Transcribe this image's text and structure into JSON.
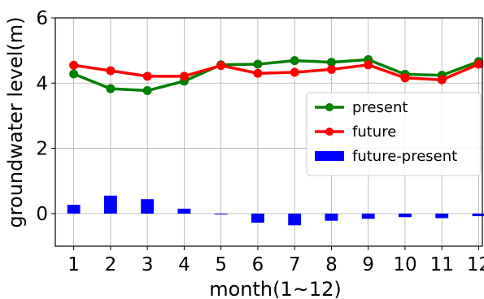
{
  "chart_data": {
    "type": "line",
    "title": "",
    "xlabel": "month(1~12)",
    "ylabel": "groundwater level(m)",
    "x": [
      1,
      2,
      3,
      4,
      5,
      6,
      7,
      8,
      9,
      10,
      11,
      12
    ],
    "x_tick_labels": [
      "1",
      "2",
      "3",
      "4",
      "5",
      "6",
      "7",
      "8",
      "9",
      "10",
      "11",
      "12"
    ],
    "y_ticks": [
      0,
      2,
      4,
      6
    ],
    "y_tick_labels": [
      "0",
      "2",
      "4",
      "6"
    ],
    "xlim": [
      0.5,
      12.1
    ],
    "ylim": [
      -1,
      6
    ],
    "grid": true,
    "legend_position": "right",
    "series": [
      {
        "name": "present",
        "type": "line",
        "color": "#008000",
        "values": [
          4.28,
          3.83,
          3.77,
          4.06,
          4.56,
          4.58,
          4.69,
          4.64,
          4.72,
          4.27,
          4.24,
          4.66
        ]
      },
      {
        "name": "future",
        "type": "line",
        "color": "#ff0000",
        "values": [
          4.55,
          4.38,
          4.21,
          4.21,
          4.54,
          4.3,
          4.33,
          4.42,
          4.56,
          4.16,
          4.1,
          4.58
        ]
      },
      {
        "name": "future-present",
        "type": "bar",
        "color": "#0000ff",
        "values": [
          0.27,
          0.55,
          0.44,
          0.15,
          -0.02,
          -0.28,
          -0.36,
          -0.22,
          -0.16,
          -0.11,
          -0.14,
          -0.08
        ]
      }
    ]
  }
}
